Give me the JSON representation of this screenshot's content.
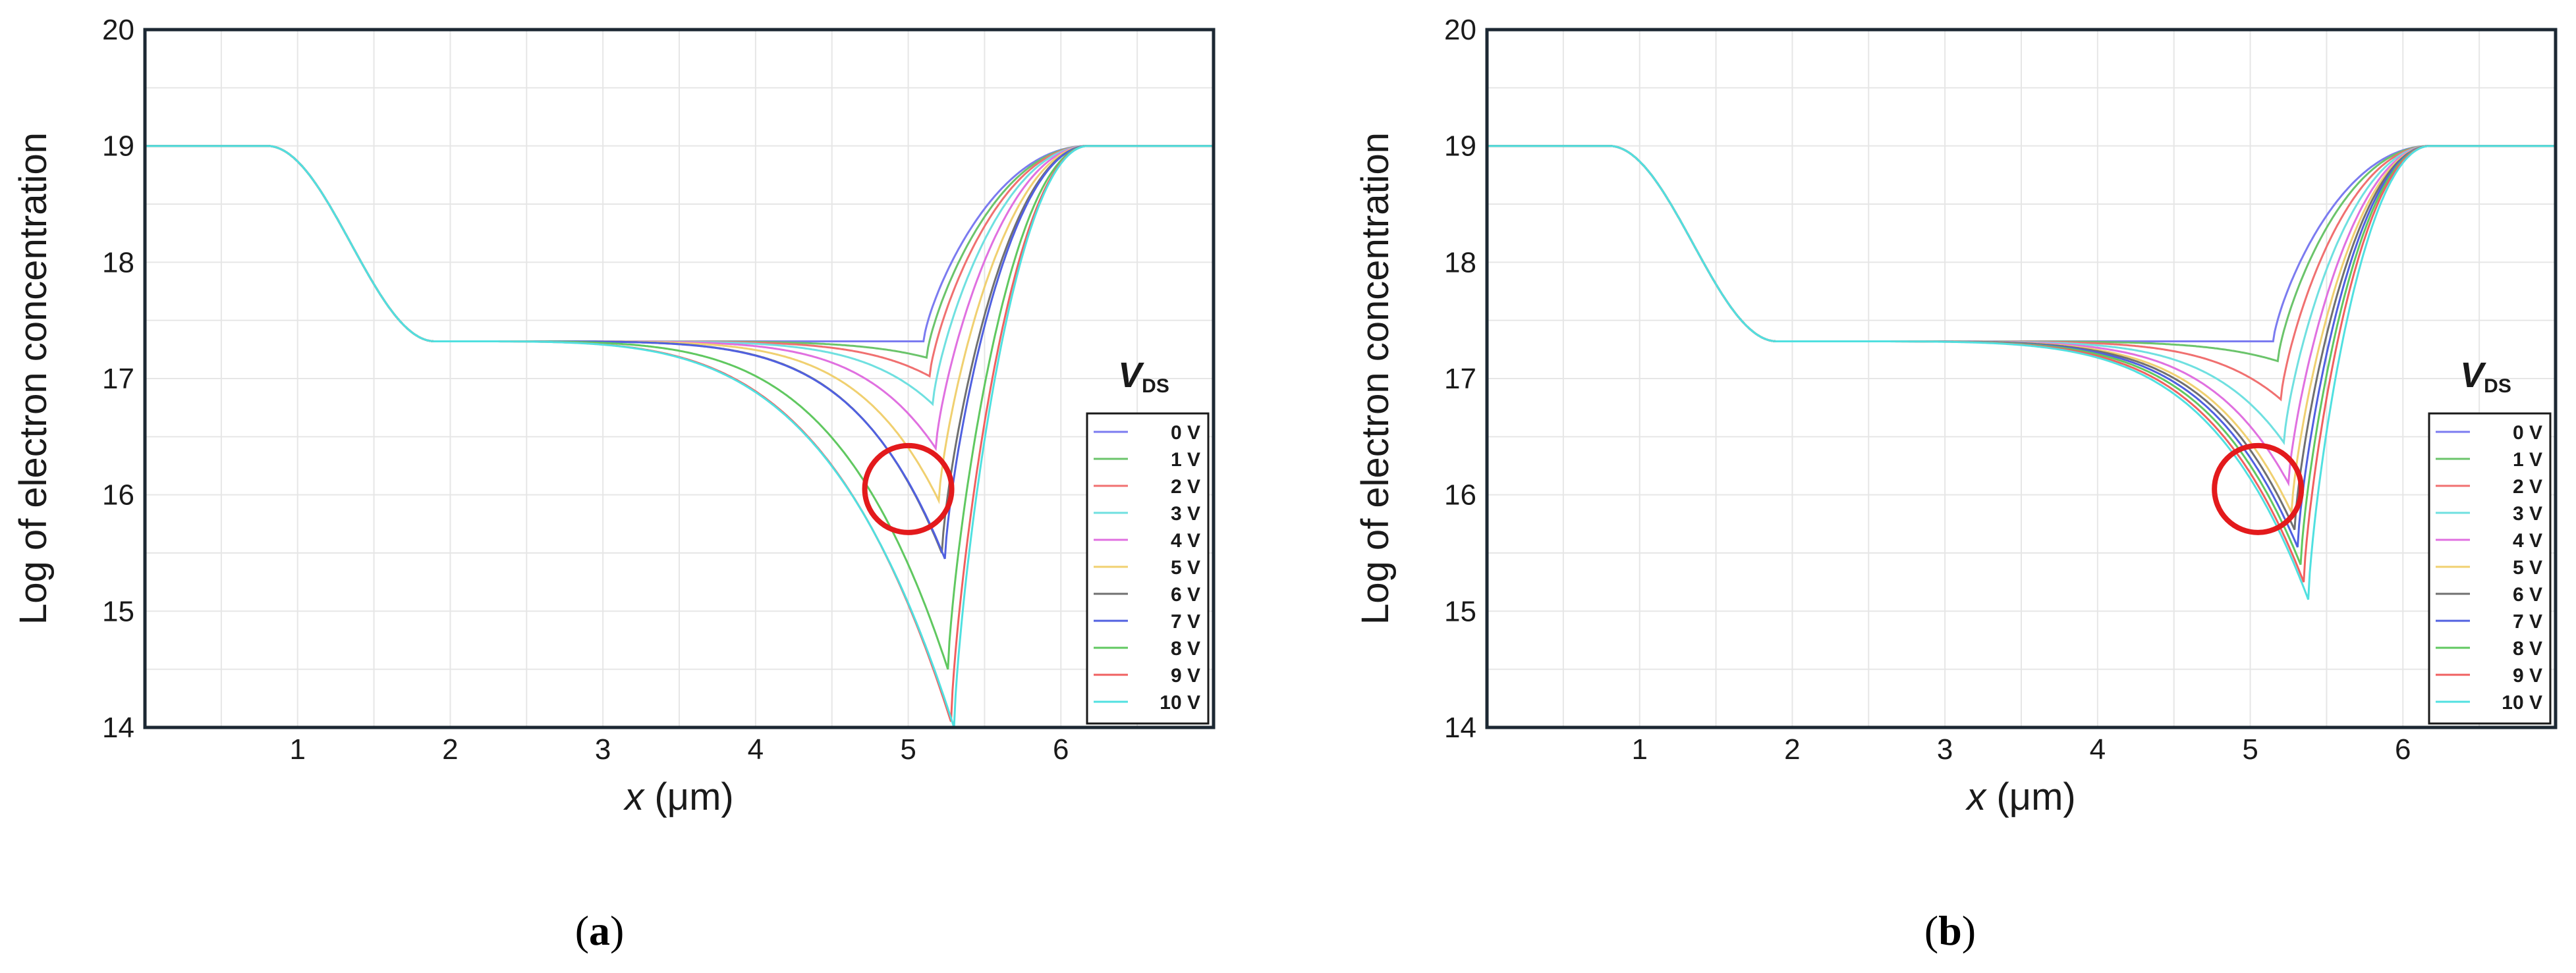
{
  "chart_data": [
    {
      "type": "line",
      "panel_label": "(a)",
      "panel_letter": "a",
      "xlabel_var": "x",
      "xlabel_unit": " (μm)",
      "ylabel": "Log of electron concentration",
      "xlim": [
        0,
        7
      ],
      "ylim": [
        14,
        20
      ],
      "xticks": [
        "1",
        "2",
        "3",
        "4",
        "5",
        "6"
      ],
      "yticks": [
        "14",
        "15",
        "16",
        "17",
        "18",
        "19",
        "20"
      ],
      "legend_title_main": "V",
      "legend_title_sub": "DS",
      "grid": true,
      "legend_position": "right",
      "annotation": {
        "type": "circle",
        "x": 5.0,
        "y": 16.05,
        "color": "#e31a1c"
      },
      "series": [
        {
          "name": "0 V",
          "color": "#7b7bf0",
          "min_x": 5.1,
          "min_y": 17.32
        },
        {
          "name": "1 V",
          "color": "#6bc46b",
          "min_x": 5.12,
          "min_y": 17.18
        },
        {
          "name": "2 V",
          "color": "#f07070",
          "min_x": 5.14,
          "min_y": 17.02
        },
        {
          "name": "3 V",
          "color": "#6fe0e0",
          "min_x": 5.16,
          "min_y": 16.78
        },
        {
          "name": "4 V",
          "color": "#e070e0",
          "min_x": 5.18,
          "min_y": 16.4
        },
        {
          "name": "5 V",
          "color": "#f0d070",
          "min_x": 5.2,
          "min_y": 15.95
        },
        {
          "name": "6 V",
          "color": "#707070",
          "min_x": 5.22,
          "min_y": 15.5
        },
        {
          "name": "7 V",
          "color": "#5060e0",
          "min_x": 5.24,
          "min_y": 15.45
        },
        {
          "name": "8 V",
          "color": "#60c860",
          "min_x": 5.26,
          "min_y": 14.5
        },
        {
          "name": "9 V",
          "color": "#f06060",
          "min_x": 5.28,
          "min_y": 14.05
        },
        {
          "name": "10 V",
          "color": "#50e0e0",
          "min_x": 5.3,
          "min_y": 14.0
        }
      ]
    },
    {
      "type": "line",
      "panel_label": "(b)",
      "panel_letter": "b",
      "xlabel_var": "x",
      "xlabel_unit": " (μm)",
      "ylabel": "Log of electron concentration",
      "xlim": [
        0,
        7
      ],
      "ylim": [
        14,
        20
      ],
      "xticks": [
        "1",
        "2",
        "3",
        "4",
        "5",
        "6"
      ],
      "yticks": [
        "14",
        "15",
        "16",
        "17",
        "18",
        "19",
        "20"
      ],
      "legend_title_main": "V",
      "legend_title_sub": "DS",
      "grid": true,
      "legend_position": "right",
      "annotation": {
        "type": "circle",
        "x": 5.05,
        "y": 16.05,
        "color": "#e31a1c"
      },
      "series": [
        {
          "name": "0 V",
          "color": "#7b7bf0",
          "min_x": 5.15,
          "min_y": 17.32
        },
        {
          "name": "1 V",
          "color": "#6bc46b",
          "min_x": 5.18,
          "min_y": 17.15
        },
        {
          "name": "2 V",
          "color": "#f07070",
          "min_x": 5.2,
          "min_y": 16.82
        },
        {
          "name": "3 V",
          "color": "#6fe0e0",
          "min_x": 5.22,
          "min_y": 16.45
        },
        {
          "name": "4 V",
          "color": "#e070e0",
          "min_x": 5.25,
          "min_y": 16.1
        },
        {
          "name": "5 V",
          "color": "#f0d070",
          "min_x": 5.27,
          "min_y": 15.85
        },
        {
          "name": "6 V",
          "color": "#707070",
          "min_x": 5.29,
          "min_y": 15.7
        },
        {
          "name": "7 V",
          "color": "#5060e0",
          "min_x": 5.31,
          "min_y": 15.55
        },
        {
          "name": "8 V",
          "color": "#60c860",
          "min_x": 5.33,
          "min_y": 15.4
        },
        {
          "name": "9 V",
          "color": "#f06060",
          "min_x": 5.35,
          "min_y": 15.25
        },
        {
          "name": "10 V",
          "color": "#50e0e0",
          "min_x": 5.38,
          "min_y": 15.1
        }
      ]
    }
  ]
}
